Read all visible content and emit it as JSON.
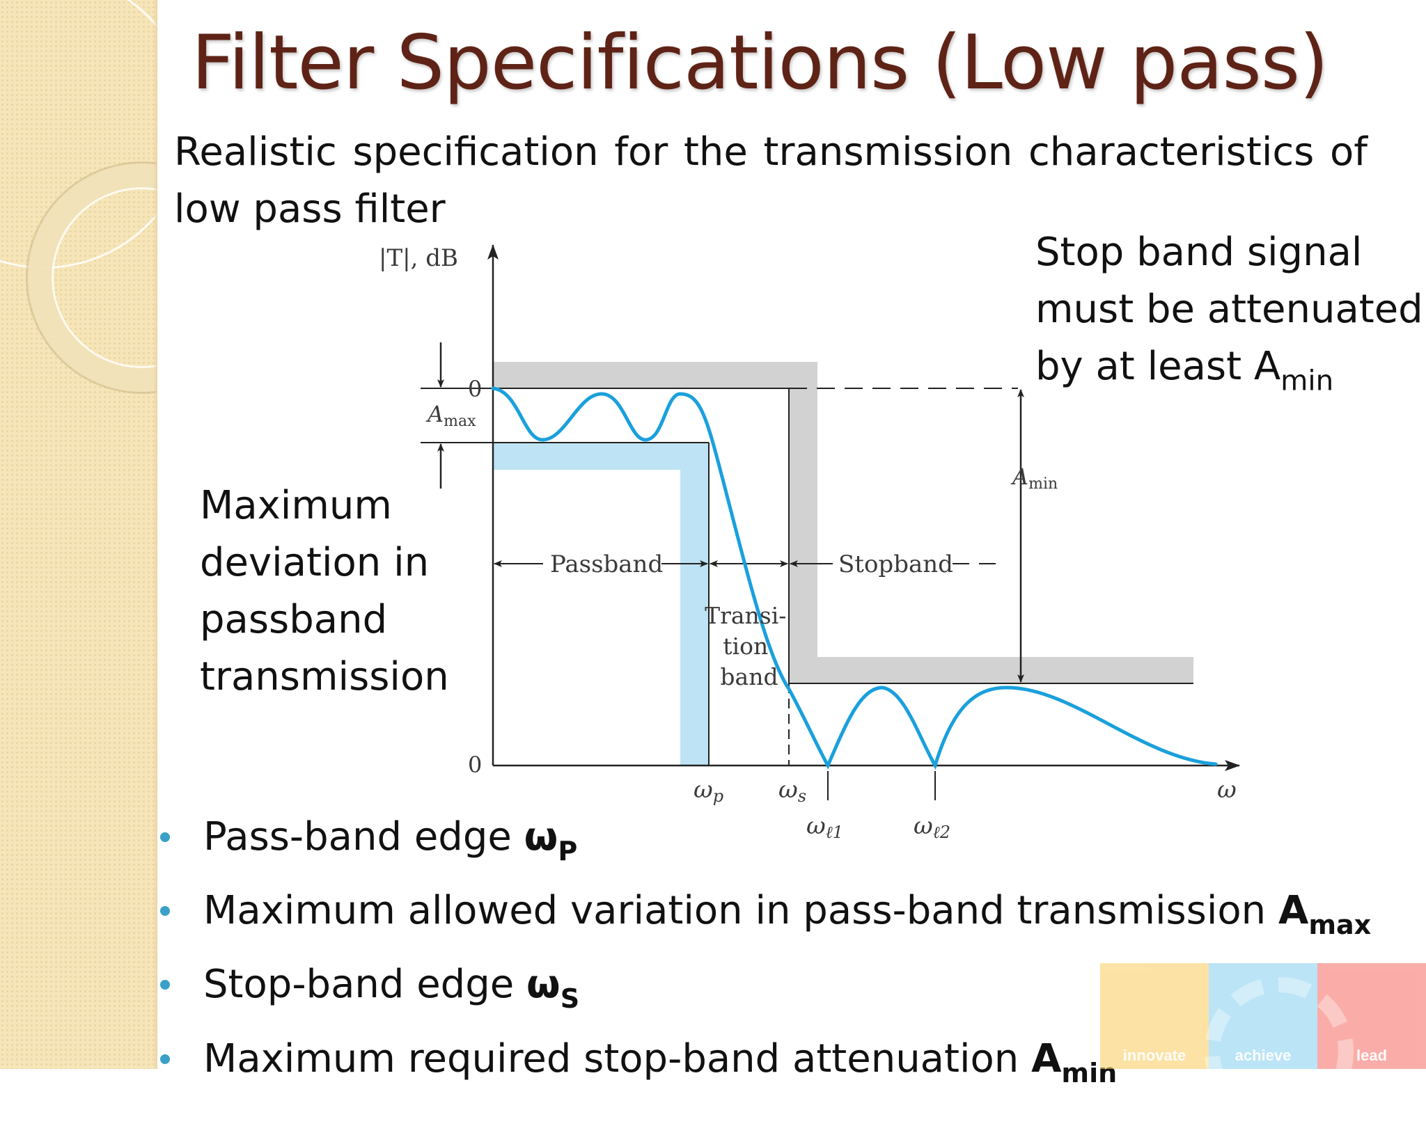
{
  "slide": {
    "title": "Filter Specifications (Low pass)",
    "intro": "Realistic specification for the transmission characteristics of low pass filter",
    "callouts": {
      "stopband_text": "Stop band signal must be attenuated by at least A",
      "stopband_sub": "min",
      "deviation_text": "Maximum deviation in passband transmission"
    }
  },
  "diagram": {
    "y_axis_label": "|T|, dB",
    "x_axis_label": "ω",
    "zero_top": "0",
    "zero_bottom": "0",
    "amax_label": "A",
    "amax_sub": "max",
    "amin_label": "A",
    "amin_sub": "min",
    "passband_label": "Passband",
    "stopband_label": "Stopband",
    "transition_lines": [
      "Transi-",
      "tion",
      "band"
    ],
    "wp_label": "ω",
    "wp_sub": "p",
    "ws_label": "ω",
    "ws_sub": "s",
    "wl1_label": "ω",
    "wl1_sub": "ℓ1",
    "wl2_label": "ω",
    "wl2_sub": "ℓ2",
    "colors": {
      "curve": "#1aa0dc",
      "passband_region": "#bde3f5",
      "stopband_region": "#d2d2d2",
      "axes": "#222222"
    }
  },
  "bullets": [
    {
      "text": "Pass-band edge ",
      "symbol": "ω",
      "sub": "P"
    },
    {
      "text": "Maximum allowed variation in pass-band transmission ",
      "symbol": "A",
      "sub": "max"
    },
    {
      "text": "Stop-band edge ",
      "symbol": "ω",
      "sub": "S"
    },
    {
      "text": "Maximum required stop-band attenuation ",
      "symbol": "A",
      "sub": "min"
    }
  ],
  "logo": {
    "segments": [
      "innovate",
      "achieve",
      "lead"
    ]
  }
}
